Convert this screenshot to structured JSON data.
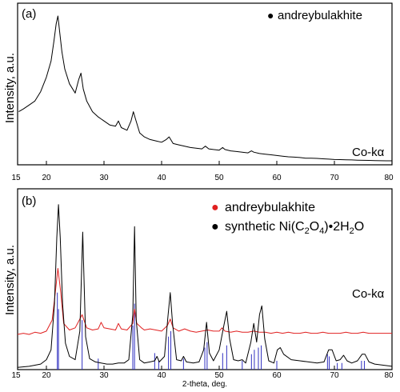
{
  "chart_data": [
    {
      "type": "line",
      "panel_label": "(a)",
      "ylabel": "Intensity, a.u.",
      "xlabel": "",
      "radiation_label": "Co-kα",
      "xlim": [
        15,
        80
      ],
      "x_ticks": [
        15,
        20,
        30,
        40,
        50,
        60,
        70,
        80
      ],
      "y_ticks_shown": false,
      "legend": [
        {
          "marker": "●",
          "label": "andreybulakhite",
          "color": "#000000"
        }
      ],
      "series": [
        {
          "color": "#000000",
          "x": [
            15.2,
            16,
            17,
            18,
            19,
            20,
            20.8,
            21.3,
            21.7,
            22.0,
            22.3,
            22.7,
            23.2,
            24,
            25,
            25.6,
            26.0,
            26.4,
            27,
            28,
            29,
            30,
            31,
            32,
            32.5,
            33,
            34,
            34.7,
            35.1,
            35.5,
            36.2,
            37,
            38,
            39,
            40,
            40.8,
            41.3,
            42,
            43,
            44,
            45,
            46,
            47,
            47.6,
            48.2,
            49,
            50,
            50.6,
            51,
            52,
            53,
            54,
            55,
            55.6,
            56,
            57,
            58,
            59,
            60,
            61,
            62,
            63,
            64,
            65,
            66,
            67,
            68,
            69,
            70,
            71,
            72,
            73,
            74,
            75,
            76,
            77,
            78,
            79,
            80
          ],
          "y": [
            40,
            42,
            45,
            48,
            55,
            66,
            78,
            93,
            106,
            112,
            100,
            85,
            72,
            61,
            54,
            64,
            69,
            57,
            48,
            40,
            36,
            33,
            30,
            29,
            33,
            28,
            26,
            33,
            40,
            34,
            24,
            21,
            19,
            18,
            17,
            19,
            21,
            16,
            15,
            14,
            13,
            12.5,
            12,
            14,
            12,
            11.5,
            11,
            13,
            11.5,
            10.5,
            10,
            9.5,
            9,
            10.5,
            9.5,
            8.5,
            8,
            7.5,
            7,
            6.5,
            6,
            5.8,
            5.5,
            5,
            5,
            4.8,
            4.5,
            4.3,
            4,
            3.9,
            3.8,
            3.7,
            3.5,
            3.4,
            3.3,
            3.2,
            3.1,
            3,
            3
          ]
        }
      ]
    },
    {
      "type": "line",
      "panel_label": "(b)",
      "ylabel": "Intensity, a.u.",
      "xlabel": "2-theta, deg.",
      "radiation_label": "Co-kα",
      "xlim": [
        15,
        80
      ],
      "x_ticks": [
        15,
        20,
        30,
        40,
        50,
        60,
        70,
        80
      ],
      "y_ticks_shown": false,
      "legend": [
        {
          "marker": "●",
          "label": "andreybulakhite",
          "color": "#e02020"
        },
        {
          "marker": "●",
          "label_parts": [
            "synthetic Ni(C",
            "2",
            "O",
            "4",
            ")•2H",
            "2",
            "O"
          ],
          "color": "#000000"
        }
      ],
      "series": [
        {
          "color": "#e02020",
          "x": [
            15,
            16,
            17,
            18,
            19,
            20,
            21,
            21.5,
            22.0,
            22.5,
            23,
            24,
            25,
            25.8,
            26.2,
            27,
            28,
            29,
            29.5,
            30,
            31,
            32,
            32.5,
            33,
            34,
            35,
            35.3,
            35.7,
            36.5,
            37,
            38,
            39,
            40,
            41,
            41.5,
            42,
            43,
            44,
            45,
            46,
            47,
            48,
            49,
            50,
            50.5,
            51,
            52,
            53,
            54,
            55,
            56,
            57,
            58,
            59,
            60,
            61,
            62,
            63,
            64,
            65,
            66,
            67,
            68,
            69,
            70,
            71,
            72,
            73,
            74,
            75,
            76,
            77,
            78,
            79,
            80
          ],
          "y": [
            32,
            33,
            32,
            34,
            33,
            35,
            45,
            68,
            92,
            70,
            42,
            36,
            38,
            46,
            50,
            38,
            36,
            37,
            43,
            38,
            37,
            36,
            42,
            37,
            36,
            42,
            55,
            42,
            38,
            36,
            37,
            36,
            35,
            40,
            46,
            38,
            35,
            37,
            35,
            34,
            35,
            36,
            35,
            35,
            38,
            35,
            34,
            35,
            34,
            34,
            35,
            34,
            34,
            33,
            34,
            33,
            34,
            33,
            33,
            34,
            33,
            33,
            34,
            33,
            33,
            33,
            34,
            33,
            33,
            34,
            33,
            33,
            33,
            33,
            33
          ]
        },
        {
          "color": "#000000",
          "x": [
            15,
            17,
            19,
            20,
            20.8,
            21.4,
            21.8,
            22.1,
            22.4,
            22.8,
            23.3,
            24,
            25,
            25.8,
            26.3,
            26.8,
            27.5,
            28.5,
            29.5,
            30.5,
            31.5,
            32.5,
            33.5,
            34.3,
            35.0,
            35.3,
            35.6,
            36.2,
            37,
            38,
            38.8,
            39.2,
            39.6,
            40.5,
            41.1,
            41.5,
            41.9,
            42.6,
            43.4,
            43.8,
            44.3,
            45.5,
            46.5,
            47.3,
            47.8,
            48.3,
            49,
            50,
            50.8,
            51.3,
            51.8,
            52.5,
            53.3,
            54.0,
            54.6,
            55.5,
            56.0,
            56.5,
            57.0,
            57.4,
            57.9,
            58.6,
            59.5,
            60.1,
            60.6,
            61.2,
            62.5,
            64,
            65.5,
            67,
            68.2,
            69.0,
            69.6,
            70.3,
            71,
            71.6,
            72.2,
            73,
            74,
            74.8,
            75.3,
            76,
            77,
            78.5,
            80
          ],
          "y": [
            2,
            3,
            5,
            9,
            18,
            60,
            120,
            150,
            120,
            60,
            24,
            12,
            9,
            35,
            125,
            30,
            10,
            7,
            6,
            5,
            5,
            6,
            6,
            9,
            50,
            130,
            45,
            9,
            6,
            7,
            8,
            12,
            7,
            12,
            48,
            70,
            42,
            9,
            8,
            12,
            7,
            6,
            7,
            18,
            43,
            15,
            8,
            18,
            40,
            53,
            28,
            9,
            8,
            9,
            6,
            25,
            42,
            25,
            50,
            58,
            28,
            8,
            6,
            18,
            20,
            14,
            9,
            8,
            7,
            6,
            7,
            18,
            18,
            8,
            9,
            13,
            8,
            6,
            8,
            14,
            14,
            7,
            5,
            4,
            3
          ]
        }
      ],
      "reference_lines": {
        "color": "#3030c0",
        "x": [
          21.9,
          22.1,
          26.2,
          29.0,
          35.0,
          35.3,
          38.8,
          39.5,
          41.2,
          41.6,
          43.8,
          47.5,
          47.9,
          50.6,
          51.3,
          54.0,
          55.6,
          56.1,
          56.8,
          57.3,
          60.0,
          68.8,
          69.1,
          70.5,
          71.3,
          74.7,
          75.2
        ],
        "heights": [
          70,
          55,
          45,
          10,
          40,
          60,
          15,
          8,
          30,
          35,
          10,
          20,
          25,
          15,
          22,
          8,
          14,
          18,
          20,
          22,
          8,
          14,
          12,
          6,
          6,
          8,
          8
        ]
      }
    }
  ]
}
